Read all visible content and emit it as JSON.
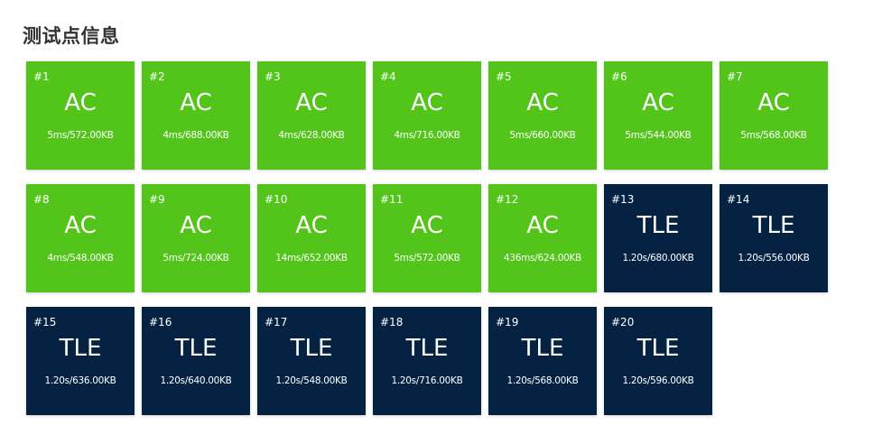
{
  "page": {
    "title": "测试点信息"
  },
  "colors": {
    "AC": "#52c41a",
    "TLE": "#052242"
  },
  "testcases": [
    {
      "id": "#1",
      "status": "AC",
      "info": "5ms/572.00KB"
    },
    {
      "id": "#2",
      "status": "AC",
      "info": "4ms/688.00KB"
    },
    {
      "id": "#3",
      "status": "AC",
      "info": "4ms/628.00KB"
    },
    {
      "id": "#4",
      "status": "AC",
      "info": "4ms/716.00KB"
    },
    {
      "id": "#5",
      "status": "AC",
      "info": "5ms/660.00KB"
    },
    {
      "id": "#6",
      "status": "AC",
      "info": "5ms/544.00KB"
    },
    {
      "id": "#7",
      "status": "AC",
      "info": "5ms/568.00KB"
    },
    {
      "id": "#8",
      "status": "AC",
      "info": "4ms/548.00KB"
    },
    {
      "id": "#9",
      "status": "AC",
      "info": "5ms/724.00KB"
    },
    {
      "id": "#10",
      "status": "AC",
      "info": "14ms/652.00KB"
    },
    {
      "id": "#11",
      "status": "AC",
      "info": "5ms/572.00KB"
    },
    {
      "id": "#12",
      "status": "AC",
      "info": "436ms/624.00KB"
    },
    {
      "id": "#13",
      "status": "TLE",
      "info": "1.20s/680.00KB"
    },
    {
      "id": "#14",
      "status": "TLE",
      "info": "1.20s/556.00KB"
    },
    {
      "id": "#15",
      "status": "TLE",
      "info": "1.20s/636.00KB"
    },
    {
      "id": "#16",
      "status": "TLE",
      "info": "1.20s/640.00KB"
    },
    {
      "id": "#17",
      "status": "TLE",
      "info": "1.20s/548.00KB"
    },
    {
      "id": "#18",
      "status": "TLE",
      "info": "1.20s/716.00KB"
    },
    {
      "id": "#19",
      "status": "TLE",
      "info": "1.20s/568.00KB"
    },
    {
      "id": "#20",
      "status": "TLE",
      "info": "1.20s/596.00KB"
    }
  ]
}
